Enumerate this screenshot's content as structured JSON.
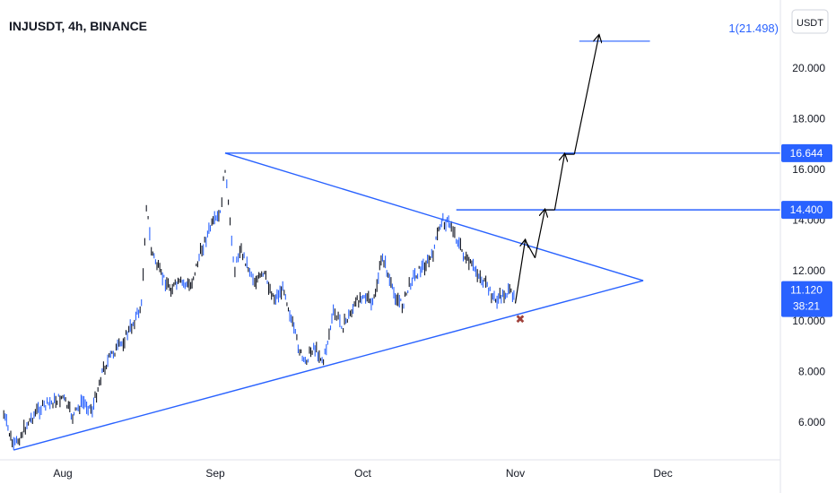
{
  "chart_data": {
    "type": "line",
    "title": "INJUSDT, 4h, BINANCE",
    "currency_label": "USDT",
    "x_tick_labels": [
      "Aug",
      "Sep",
      "Oct",
      "Nov",
      "Dec"
    ],
    "y_ticks": [
      6.0,
      8.0,
      10.0,
      12.0,
      14.0,
      16.0,
      18.0,
      20.0
    ],
    "y_tick_labels": [
      "6.000",
      "8.000",
      "10.000",
      "12.000",
      "14.000",
      "16.000",
      "18.000",
      "20.000"
    ],
    "ylim": [
      4.6,
      22.0
    ],
    "price_series": {
      "x": [
        "Jul 20",
        "Jul 22",
        "Jul 25",
        "Jul 27",
        "Jul 30",
        "Aug 1",
        "Aug 3",
        "Aug 5",
        "Aug 7",
        "Aug 9",
        "Aug 11",
        "Aug 13",
        "Aug 15",
        "Aug 17",
        "Aug 18",
        "Aug 19",
        "Aug 21",
        "Aug 23",
        "Aug 25",
        "Aug 27",
        "Aug 29",
        "Aug 31",
        "Sep 2",
        "Sep 3",
        "Sep 4",
        "Sep 5",
        "Sep 6",
        "Sep 8",
        "Sep 9",
        "Sep 11",
        "Sep 13",
        "Sep 15",
        "Sep 17",
        "Sep 19",
        "Sep 21",
        "Sep 23",
        "Sep 25",
        "Sep 26",
        "Sep 27",
        "Sep 29",
        "Oct 1",
        "Oct 3",
        "Oct 5",
        "Oct 7",
        "Oct 9",
        "Oct 11",
        "Oct 13",
        "Oct 15",
        "Oct 17",
        "Oct 19",
        "Oct 20",
        "Oct 22",
        "Oct 24",
        "Oct 26",
        "Oct 28",
        "Oct 30",
        "Nov 1"
      ],
      "y": [
        6.3,
        5.0,
        6.0,
        6.5,
        6.8,
        7.0,
        6.2,
        6.8,
        6.5,
        8.0,
        8.7,
        9.1,
        9.8,
        10.6,
        14.6,
        12.8,
        11.8,
        11.3,
        11.5,
        11.4,
        12.7,
        13.7,
        14.2,
        16.1,
        13.8,
        12.0,
        12.9,
        12.0,
        11.6,
        11.8,
        10.9,
        11.3,
        9.6,
        8.3,
        9.0,
        8.4,
        10.3,
        10.1,
        9.8,
        10.5,
        11.1,
        10.6,
        12.6,
        11.2,
        10.6,
        11.7,
        12.1,
        12.5,
        14.0,
        13.8,
        13.3,
        12.4,
        12.0,
        11.4,
        10.8,
        11.1,
        11.12
      ]
    },
    "triangle": {
      "apex": {
        "x": "Nov 27",
        "y": 11.6
      },
      "upper_start": {
        "x": "Sep 3",
        "y": 16.644
      },
      "lower_start": {
        "x": "Jul 22",
        "y": 4.9
      }
    },
    "horizontal_levels": [
      {
        "value": 16.644,
        "label": "16.644",
        "from": "Sep 3"
      },
      {
        "value": 14.4,
        "label": "14.400",
        "from": "Oct 20"
      }
    ],
    "fib_target": {
      "value": 21.498,
      "label": "1(21.498)",
      "from": "Nov 14",
      "to": "Nov 28"
    },
    "projected_path": [
      {
        "x": "Nov 1",
        "y": 10.7
      },
      {
        "x": "Nov 3",
        "y": 13.2
      },
      {
        "x": "Nov 5",
        "y": 12.5
      },
      {
        "x": "Nov 7",
        "y": 14.4
      },
      {
        "x": "Nov 9",
        "y": 14.4
      },
      {
        "x": "Nov 11",
        "y": 16.6
      },
      {
        "x": "Nov 13",
        "y": 16.6
      },
      {
        "x": "Nov 18",
        "y": 21.3
      }
    ],
    "invalidation_marker": {
      "x": "Nov 2",
      "y": 10.1,
      "symbol": "✖"
    },
    "current_price": {
      "value": 11.12,
      "label": "11.120",
      "countdown": "38:21"
    },
    "grid": false,
    "colors": {
      "candles": "#2962ff",
      "candles_dark": "#131722",
      "trendline": "#2962ff",
      "level_badge": "#2962ff",
      "arrow": "#000000",
      "marker": "#a0413b"
    }
  }
}
